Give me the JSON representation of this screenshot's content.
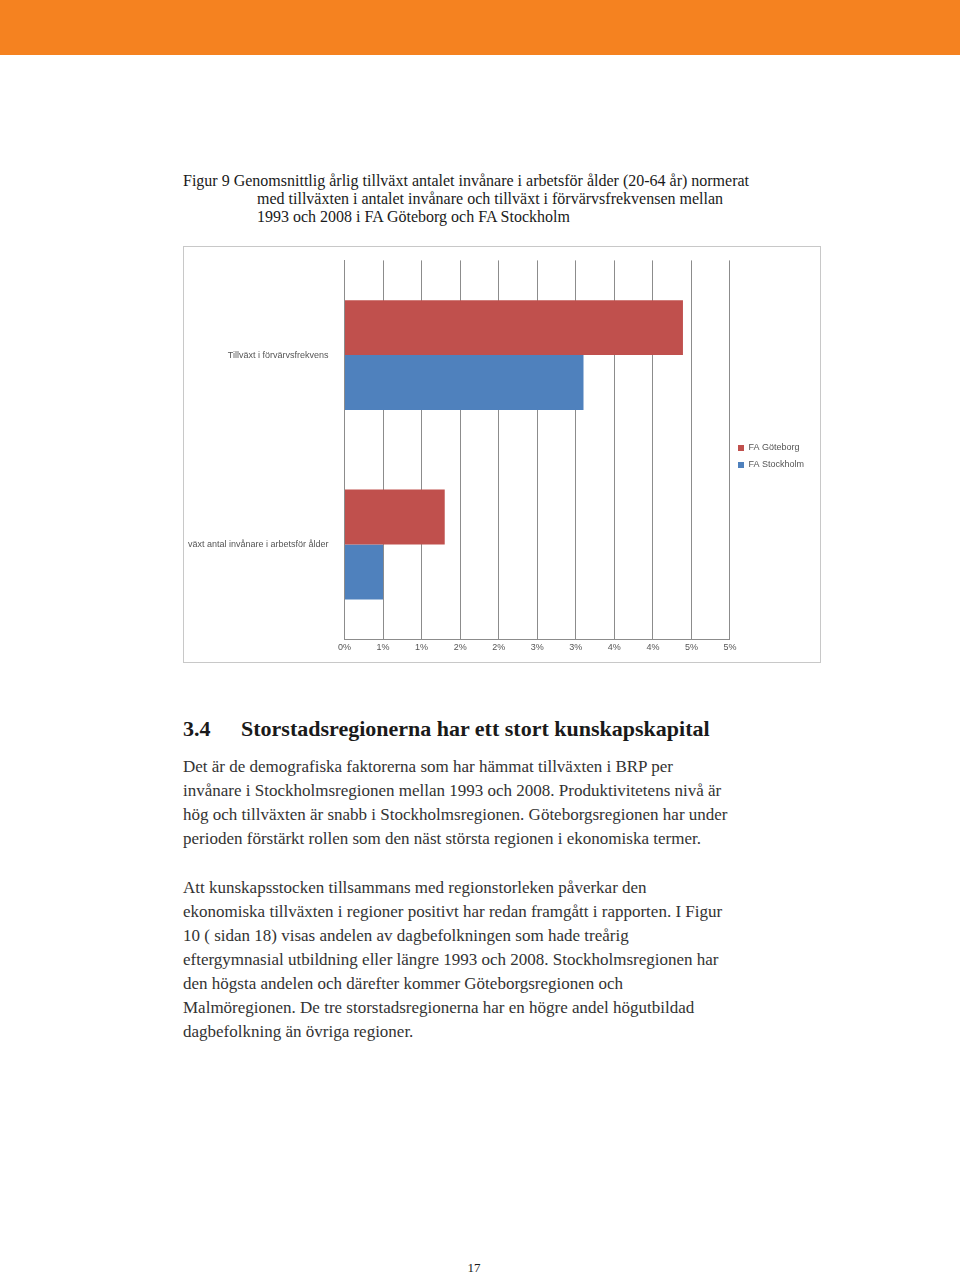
{
  "figure_caption": [
    "Figur 9 Genomsnittlig årlig tillväxt antalet invånare i arbetsför ålder (20-64 år) normerat",
    "med tillväxten i antalet invånare och tillväxt i förvärvsfrekvensen mellan",
    "1993 och 2008 i FA Göteborg och FA Stockholm"
  ],
  "chart_data": {
    "type": "bar",
    "orientation": "horizontal",
    "categories": [
      "Tillväxt i förvärvsfrekvens",
      "Relativ tillväxt antal invånare i arbetsför ålder"
    ],
    "series": [
      {
        "name": "FA Göteborg",
        "color": "#c0504d",
        "values": [
          4.39,
          1.3
        ]
      },
      {
        "name": "FA Stockholm",
        "color": "#4f81bd",
        "values": [
          3.1,
          0.5
        ]
      }
    ],
    "xlim": [
      0,
      5
    ],
    "xticks": [
      {
        "value": 0,
        "label": "0%"
      },
      {
        "value": 0.5,
        "label": "1%"
      },
      {
        "value": 1,
        "label": "1%"
      },
      {
        "value": 1.5,
        "label": "2%"
      },
      {
        "value": 2,
        "label": "2%"
      },
      {
        "value": 2.5,
        "label": "3%"
      },
      {
        "value": 3,
        "label": "3%"
      },
      {
        "value": 3.5,
        "label": "4%"
      },
      {
        "value": 4,
        "label": "4%"
      },
      {
        "value": 4.5,
        "label": "5%"
      },
      {
        "value": 5,
        "label": "5%"
      }
    ],
    "grid": true,
    "legend": "right"
  },
  "section": {
    "number": "3.4",
    "title": "Storstadsregionerna har ett stort kunskapskapital"
  },
  "paragraphs": [
    [
      "Det är de demografiska faktorerna som har hämmat tillväxten i BRP per",
      "invånare i Stockholmsregionen mellan 1993 och 2008. Produktivitetens nivå är",
      "hög och tillväxten är snabb i Stockholmsregionen. Göteborgsregionen har under",
      "perioden förstärkt rollen som den näst största regionen i ekonomiska termer."
    ],
    [
      "Att kunskapsstocken tillsammans med regionstorleken påverkar den",
      "ekonomiska tillväxten i regioner positivt har redan framgått i rapporten. I Figur",
      "10 ( sidan 18) visas andelen av dagbefolkningen som hade treårig",
      "eftergymnasial utbildning eller längre 1993 och 2008. Stockholmsregionen har",
      "den högsta andelen och därefter kommer Göteborgsregionen och",
      "Malmöregionen. De tre storstadsregionerna har en högre andel högutbildad",
      "dagbefolkning än övriga regioner."
    ]
  ],
  "page_number": 17
}
